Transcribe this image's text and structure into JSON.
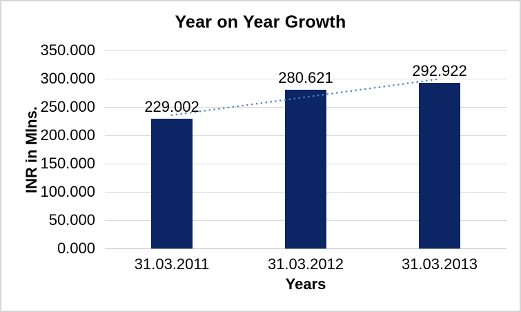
{
  "window": {
    "background": "#ffffff",
    "border_color": "#d6d6d6"
  },
  "chart_data": {
    "type": "bar",
    "title": "Year on Year Growth",
    "xlabel": "Years",
    "ylabel": "INR in Mlns.",
    "categories": [
      "31.03.2011",
      "31.03.2012",
      "31.03.2013"
    ],
    "values": [
      229.002,
      280.621,
      292.922
    ],
    "data_labels": [
      "229.002",
      "280.621",
      "292.922"
    ],
    "ylim": [
      0,
      350
    ],
    "ytick_step": 50,
    "ytick_labels": [
      "0.000",
      "50.000",
      "100.000",
      "150.000",
      "200.000",
      "250.000",
      "300.000",
      "350.000"
    ],
    "grid": true,
    "legend": "none",
    "trendline": {
      "type": "linear",
      "style": "dotted",
      "color": "#4e86c6"
    },
    "colors": {
      "bar": "#0b2565",
      "gridline": "#d9d9d9",
      "axis_line": "#b7b7b7",
      "text": "#000000"
    }
  }
}
